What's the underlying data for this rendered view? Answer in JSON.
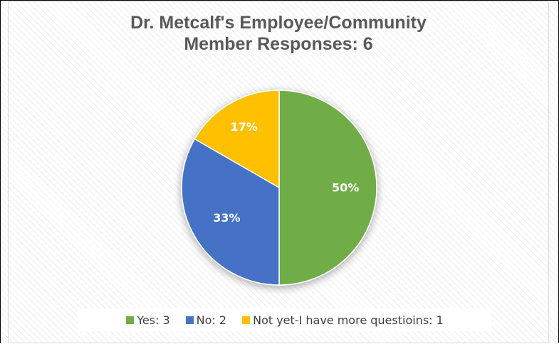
{
  "chart_data": {
    "type": "pie",
    "title": [
      "Dr. Metcalf's Employee/Community",
      "Member Responses: 6"
    ],
    "slices": [
      {
        "label": "Yes: 3",
        "value": 3,
        "percent_label": "50%",
        "color": "#70ad47"
      },
      {
        "label": "No: 2",
        "value": 2,
        "percent_label": "33%",
        "color": "#4472c4"
      },
      {
        "label": "Not yet-I have more questioins: 1",
        "value": 1,
        "percent_label": "17%",
        "color": "#ffc000"
      }
    ],
    "start": "12 o'clock, clockwise",
    "legend_position": "bottom",
    "data_labels": "percent, inside"
  }
}
